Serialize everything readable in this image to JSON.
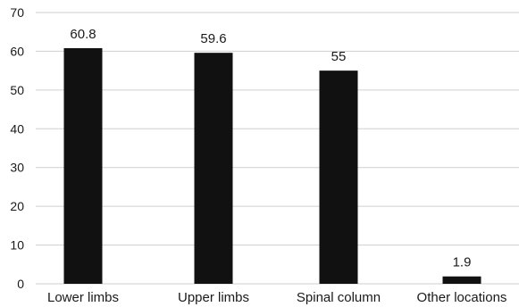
{
  "chart_data": {
    "type": "bar",
    "title": "",
    "xlabel": "",
    "ylabel": "",
    "categories": [
      "Lower limbs",
      "Upper limbs",
      "Spinal column",
      "Other locations"
    ],
    "values": [
      60.8,
      59.6,
      55,
      1.9
    ],
    "value_labels": [
      "60.8",
      "59.6",
      "55",
      "1.9"
    ],
    "ylim": [
      0,
      70
    ],
    "yticks": [
      0,
      10,
      20,
      30,
      40,
      50,
      60,
      70
    ],
    "grid": true,
    "legend": "none",
    "bar_color": "#111111",
    "grid_color": "#cfcfcf"
  }
}
